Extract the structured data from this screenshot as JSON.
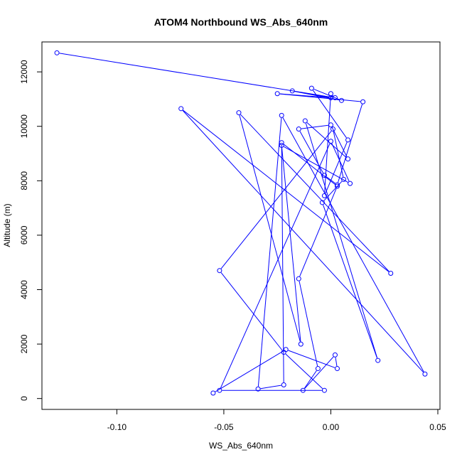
{
  "chart_data": {
    "type": "line",
    "title": "ATOM4 Northbound WS_Abs_640nm",
    "xlabel": "WS_Abs_640nm",
    "ylabel": "Altitude (m)",
    "xlim": [
      -0.135,
      0.051
    ],
    "ylim": [
      -400,
      13100
    ],
    "xticks": [
      -0.1,
      -0.05,
      0.0,
      0.05
    ],
    "xtick_labels": [
      "-0.10",
      "-0.05",
      "0.00",
      "0.05"
    ],
    "yticks": [
      0,
      2000,
      4000,
      6000,
      8000,
      10000,
      12000
    ],
    "ytick_labels": [
      "0",
      "2000",
      "4000",
      "6000",
      "8000",
      "10000",
      "12000"
    ],
    "grid": false,
    "series": [
      {
        "color": "#0000ff",
        "marker": "open-circle",
        "x": [
          -0.055,
          -0.021,
          0.003,
          0.002,
          -0.013,
          -0.006,
          -0.015,
          0.003,
          -0.023,
          -0.022,
          -0.034,
          -0.023,
          0.044,
          -0.07,
          0.028,
          -0.043,
          -0.014,
          -0.023,
          0.009,
          0.0,
          -0.052,
          -0.003,
          -0.022,
          -0.052,
          0.001,
          0.006,
          -0.004,
          0.022,
          -0.012,
          0.008,
          0.0,
          -0.015,
          -0.003,
          0.003,
          0.015,
          -0.025,
          0.0,
          -0.018,
          0.005,
          -0.009,
          0.008,
          -0.003,
          0.0,
          0.002,
          -0.128
        ],
        "y": [
          200,
          1800,
          1100,
          1600,
          300,
          1100,
          4400,
          7800,
          9400,
          500,
          350,
          10400,
          900,
          10650,
          4600,
          10500,
          2000,
          9300,
          7900,
          9450,
          300,
          300,
          1700,
          4700,
          9900,
          8050,
          7200,
          1400,
          10200,
          8800,
          10050,
          9900,
          8200,
          7850,
          10900,
          11200,
          11050,
          11300,
          10950,
          11400,
          9500,
          7450,
          11200,
          11050,
          12700
        ]
      }
    ]
  }
}
